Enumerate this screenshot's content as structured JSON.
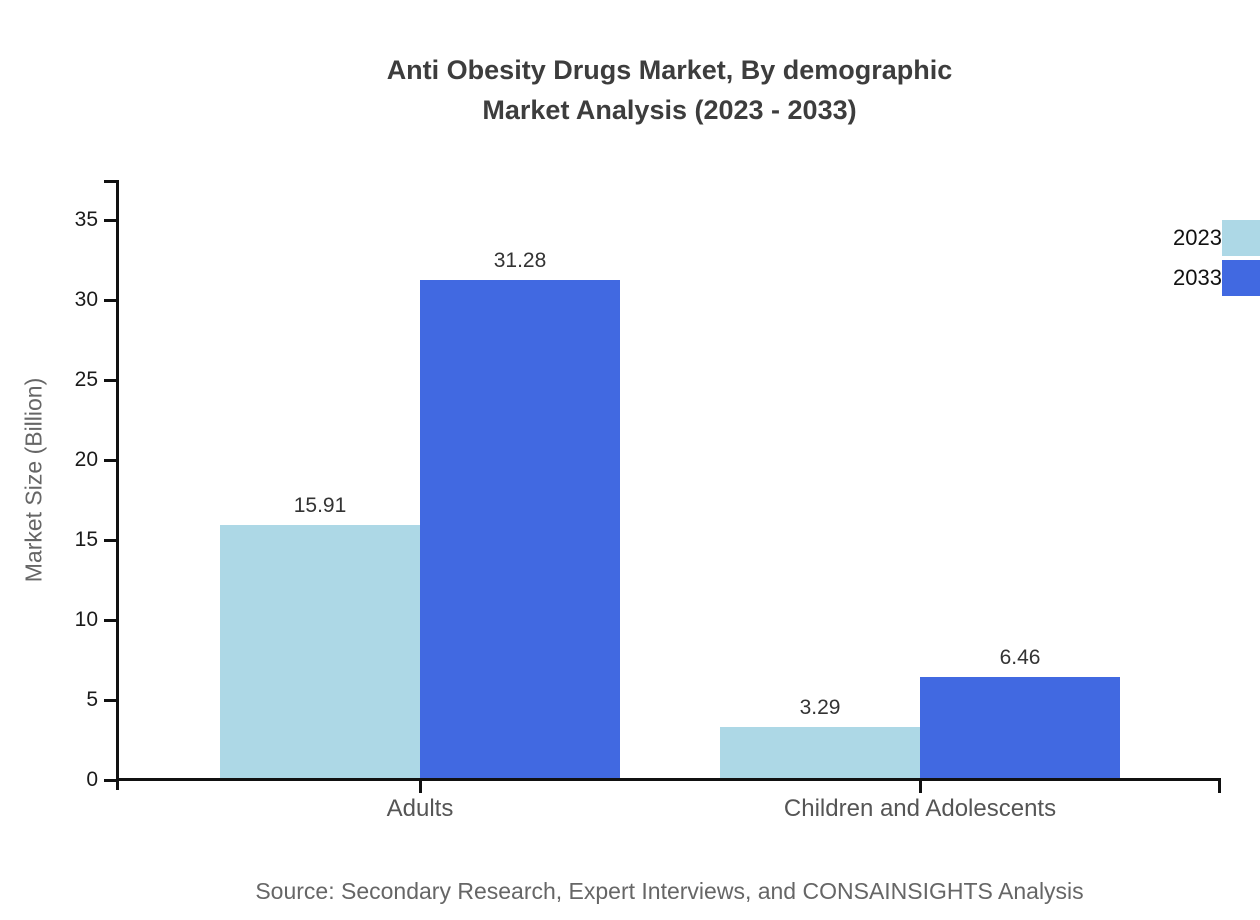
{
  "title": {
    "line1": "Anti Obesity Drugs Market, By demographic",
    "line2": "Market Analysis (2023 - 2033)"
  },
  "source_note": "Source: Secondary Research, Expert Interviews, and CONSAINSIGHTS Analysis",
  "chart_data": {
    "type": "bar",
    "title": "Anti Obesity Drugs Market, By demographic Market Analysis (2023 - 2033)",
    "categories": [
      "Adults",
      "Children and Adolescents"
    ],
    "series": [
      {
        "name": "2023",
        "color": "#ADD8E6",
        "values": [
          15.91,
          3.29
        ]
      },
      {
        "name": "2033",
        "color": "#4169E1",
        "values": [
          31.28,
          6.46
        ]
      }
    ],
    "xlabel": "",
    "ylabel": "Market Size (Billion)",
    "ylim": [
      0,
      35
    ],
    "yticks": [
      0,
      5,
      10,
      15,
      20,
      25,
      30,
      35
    ],
    "grid": false,
    "legend_position": "top-right",
    "value_labels": true,
    "value_label_format": "0.00",
    "axis_color": "#111111",
    "background_color": "#ffffff"
  }
}
